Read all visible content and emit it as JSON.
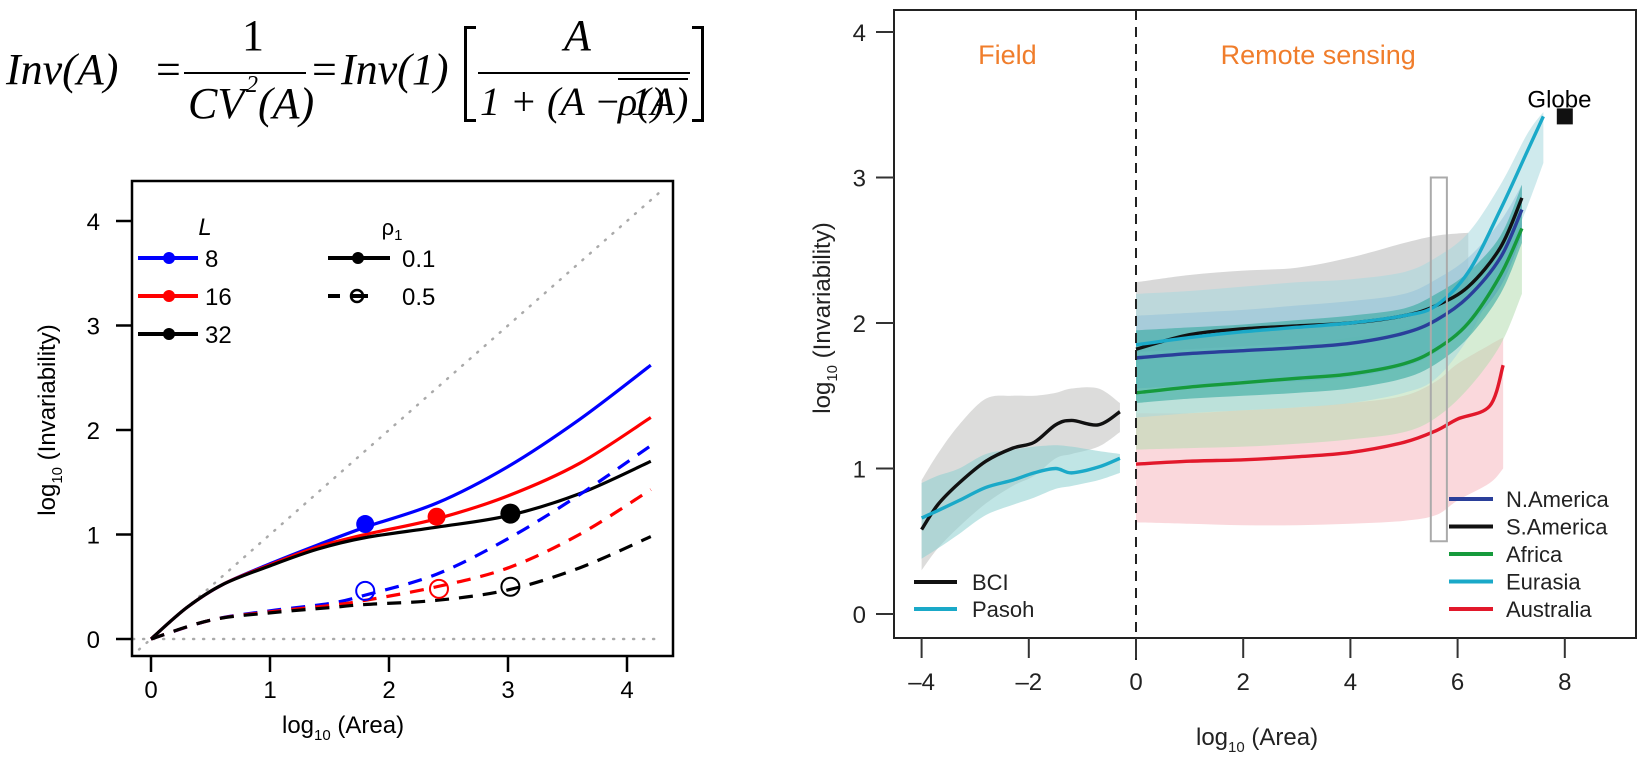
{
  "formula": {
    "lhs": "Inv(A)",
    "eq1": "=",
    "frac1_num": "1",
    "frac1_den": "CV",
    "frac1_den_sup": "2",
    "frac1_den_arg": "(A)",
    "eq2": "=",
    "inv1": "Inv(1)",
    "frac2_num": "A",
    "frac2_den_prefix": "1 + (A − 1)",
    "frac2_den_rho": "ρ(A)"
  },
  "chart_data": [
    {
      "type": "line",
      "title": "",
      "xlabel": "log10 (Area)",
      "ylabel": "log10 (Invariability)",
      "xlim": [
        -0.15,
        4.3
      ],
      "ylim": [
        -0.17,
        4.35
      ],
      "xticks": [
        0,
        1,
        2,
        3,
        4
      ],
      "yticks": [
        0,
        1,
        2,
        3,
        4
      ],
      "grid": false,
      "legend": {
        "placement": "top-left",
        "color_title": "L",
        "style_title": "ρ1",
        "color_entries": [
          {
            "label": "8",
            "color": "#0000ff"
          },
          {
            "label": "16",
            "color": "#ff0000"
          },
          {
            "label": "32",
            "color": "#000000"
          }
        ],
        "style_entries": [
          {
            "label": "0.1",
            "style": "solid",
            "marker": "filled-circle"
          },
          {
            "label": "0.5",
            "style": "dashed",
            "marker": "open-circle"
          }
        ]
      },
      "reference_lines": [
        {
          "name": "1:1 line",
          "style": "dotted",
          "color": "#aaaaaa",
          "x": [
            -0.1,
            4.3
          ],
          "y": [
            -0.1,
            4.3
          ]
        },
        {
          "name": "zero line",
          "style": "dotted",
          "color": "#aaaaaa",
          "x": [
            -0.15,
            4.3
          ],
          "y": [
            0,
            0
          ]
        }
      ],
      "series": [
        {
          "name": "L=8, rho1=0.1",
          "color": "#0000ff",
          "style": "solid",
          "x": [
            0,
            0.3,
            0.6,
            1.0,
            1.4,
            1.8,
            2.4,
            3.0,
            3.6,
            4.2
          ],
          "y": [
            0,
            0.3,
            0.52,
            0.72,
            0.9,
            1.07,
            1.3,
            1.65,
            2.1,
            2.62
          ],
          "marker": {
            "x": 1.8,
            "y": 1.1
          }
        },
        {
          "name": "L=16, rho1=0.1",
          "color": "#ff0000",
          "style": "solid",
          "x": [
            0,
            0.3,
            0.6,
            1.0,
            1.4,
            1.8,
            2.4,
            3.0,
            3.6,
            4.2
          ],
          "y": [
            0,
            0.3,
            0.52,
            0.71,
            0.88,
            1.0,
            1.15,
            1.37,
            1.68,
            2.12
          ],
          "marker": {
            "x": 2.4,
            "y": 1.17
          }
        },
        {
          "name": "L=32, rho1=0.1",
          "color": "#000000",
          "style": "solid",
          "x": [
            0,
            0.3,
            0.6,
            1.0,
            1.4,
            1.8,
            2.4,
            3.0,
            3.6,
            4.2
          ],
          "y": [
            0,
            0.3,
            0.52,
            0.7,
            0.86,
            0.97,
            1.07,
            1.18,
            1.39,
            1.7
          ],
          "marker": {
            "x": 3.02,
            "y": 1.2
          }
        },
        {
          "name": "L=8, rho1=0.5",
          "color": "#0000ff",
          "style": "dashed",
          "x": [
            0,
            0.5,
            1.0,
            1.5,
            1.8,
            2.4,
            3.0,
            3.6,
            4.2
          ],
          "y": [
            0,
            0.18,
            0.27,
            0.34,
            0.42,
            0.62,
            0.96,
            1.38,
            1.85
          ],
          "marker": {
            "x": 1.8,
            "y": 0.46
          }
        },
        {
          "name": "L=16, rho1=0.5",
          "color": "#ff0000",
          "style": "dashed",
          "x": [
            0,
            0.5,
            1.0,
            1.5,
            1.8,
            2.4,
            3.0,
            3.6,
            4.2
          ],
          "y": [
            0,
            0.18,
            0.26,
            0.32,
            0.37,
            0.5,
            0.68,
            1.0,
            1.43
          ],
          "marker": {
            "x": 2.42,
            "y": 0.48
          }
        },
        {
          "name": "L=32, rho1=0.5",
          "color": "#000000",
          "style": "dashed",
          "x": [
            0,
            0.5,
            1.0,
            1.5,
            1.8,
            2.4,
            3.0,
            3.6,
            4.2
          ],
          "y": [
            0,
            0.18,
            0.25,
            0.3,
            0.33,
            0.37,
            0.47,
            0.68,
            0.98
          ],
          "marker": {
            "x": 3.02,
            "y": 0.5
          }
        }
      ]
    },
    {
      "type": "line",
      "title": "",
      "xlabel": "log10 (Area)",
      "ylabel": "log10 (Invariability)",
      "xlim": [
        -4.5,
        9.3
      ],
      "ylim": [
        -0.17,
        4.15
      ],
      "xticks": [
        -4,
        -2,
        0,
        2,
        4,
        6,
        8
      ],
      "yticks": [
        0,
        1,
        2,
        3,
        4
      ],
      "grid": false,
      "annotations": [
        {
          "text": "Field",
          "color": "#f07d2b",
          "x": -2.4,
          "y": 3.85
        },
        {
          "text": "Remote sensing",
          "color": "#f07d2b",
          "x": 3.4,
          "y": 3.85
        },
        {
          "text": "Globe",
          "color": "#000000",
          "x": 7.9,
          "y": 3.55
        }
      ],
      "divider": {
        "x": 0,
        "style": "dashed"
      },
      "highlight_box": {
        "x": [
          5.5,
          5.8
        ],
        "y": [
          0.5,
          3.0
        ]
      },
      "globe_point": {
        "x": 8.0,
        "y": 3.42
      },
      "legends": [
        {
          "placement": "bottom-left",
          "entries": [
            {
              "label": "BCI",
              "color": "#111111"
            },
            {
              "label": "Pasoh",
              "color": "#1aa9c8"
            }
          ]
        },
        {
          "placement": "bottom-right",
          "entries": [
            {
              "label": "N.America",
              "color": "#2a3f9a"
            },
            {
              "label": "S.America",
              "color": "#111111"
            },
            {
              "label": "Africa",
              "color": "#169a3c"
            },
            {
              "label": "Eurasia",
              "color": "#1aa9c8"
            },
            {
              "label": "Australia",
              "color": "#e2182b"
            }
          ]
        }
      ],
      "series": [
        {
          "name": "BCI",
          "color": "#111111",
          "band_color": "#bfbfbd",
          "x": [
            -4.0,
            -3.7,
            -3.3,
            -2.8,
            -2.3,
            -1.9,
            -1.5,
            -1.2,
            -0.7,
            -0.3
          ],
          "y": [
            0.58,
            0.75,
            0.9,
            1.05,
            1.14,
            1.18,
            1.3,
            1.33,
            1.3,
            1.39
          ],
          "lower": [
            0.3,
            0.45,
            0.6,
            0.76,
            0.88,
            0.95,
            1.07,
            1.1,
            1.15,
            1.25
          ],
          "upper": [
            0.92,
            1.1,
            1.3,
            1.48,
            1.5,
            1.5,
            1.52,
            1.55,
            1.55,
            1.45
          ]
        },
        {
          "name": "Pasoh",
          "color": "#1aa9c8",
          "band_color": "#8ccfcf",
          "x": [
            -4.0,
            -3.7,
            -3.3,
            -2.8,
            -2.3,
            -1.9,
            -1.5,
            -1.2,
            -0.7,
            -0.3
          ],
          "y": [
            0.66,
            0.71,
            0.78,
            0.87,
            0.92,
            0.97,
            1.0,
            0.97,
            1.01,
            1.07
          ],
          "lower": [
            0.38,
            0.45,
            0.55,
            0.68,
            0.75,
            0.8,
            0.86,
            0.88,
            0.92,
            0.97
          ],
          "upper": [
            0.9,
            0.95,
            1.0,
            1.1,
            1.13,
            1.15,
            1.16,
            1.15,
            1.12,
            1.1
          ]
        },
        {
          "name": "Australia",
          "color": "#e2182b",
          "band_color": "#f5b8c0",
          "x": [
            0,
            1,
            2,
            3,
            4,
            5,
            5.6,
            6.0,
            6.6,
            6.85
          ],
          "y": [
            1.03,
            1.05,
            1.06,
            1.08,
            1.11,
            1.18,
            1.26,
            1.34,
            1.43,
            1.71
          ],
          "lower": [
            0.63,
            0.62,
            0.61,
            0.61,
            0.62,
            0.64,
            0.68,
            0.78,
            0.9,
            1.0
          ],
          "upper": [
            1.38,
            1.38,
            1.4,
            1.42,
            1.45,
            1.5,
            1.6,
            1.72,
            1.85,
            1.9
          ]
        },
        {
          "name": "Africa",
          "color": "#169a3c",
          "band_color": "#b5dcb0",
          "x": [
            0,
            1,
            2,
            3,
            4,
            5,
            5.6,
            6.2,
            6.8,
            7.2
          ],
          "y": [
            1.52,
            1.56,
            1.59,
            1.62,
            1.65,
            1.72,
            1.82,
            2.0,
            2.33,
            2.65
          ],
          "lower": [
            1.13,
            1.14,
            1.15,
            1.17,
            1.2,
            1.25,
            1.35,
            1.55,
            1.85,
            2.2
          ],
          "upper": [
            1.78,
            1.8,
            1.82,
            1.85,
            1.9,
            1.96,
            2.05,
            2.25,
            2.6,
            2.85
          ]
        },
        {
          "name": "N.America",
          "color": "#2a3f9a",
          "band_color": "#7fa8d6",
          "x": [
            0,
            1,
            2,
            3,
            4,
            5,
            5.6,
            6.2,
            6.8,
            7.2
          ],
          "y": [
            1.76,
            1.79,
            1.81,
            1.83,
            1.86,
            1.93,
            2.02,
            2.18,
            2.45,
            2.78
          ],
          "lower": [
            1.55,
            1.57,
            1.59,
            1.6,
            1.63,
            1.7,
            1.8,
            1.98,
            2.25,
            2.6
          ],
          "upper": [
            2.05,
            2.07,
            2.09,
            2.12,
            2.15,
            2.2,
            2.3,
            2.45,
            2.7,
            2.95
          ]
        },
        {
          "name": "S.America",
          "color": "#111111",
          "band_color": "#2aa59a",
          "x": [
            0,
            1,
            2,
            3,
            4,
            5,
            5.6,
            6.2,
            6.8,
            7.2
          ],
          "y": [
            1.82,
            1.92,
            1.96,
            1.98,
            2.0,
            2.05,
            2.12,
            2.25,
            2.52,
            2.86
          ],
          "lower": [
            1.45,
            1.48,
            1.5,
            1.52,
            1.55,
            1.62,
            1.72,
            1.9,
            2.2,
            2.55
          ],
          "upper": [
            1.95,
            1.97,
            1.99,
            2.02,
            2.05,
            2.1,
            2.2,
            2.35,
            2.6,
            2.95
          ]
        },
        {
          "name": "Eurasia",
          "color": "#1aa9c8",
          "band_color": "#a7d9df",
          "x": [
            0,
            1,
            2,
            3,
            4,
            5,
            5.6,
            6.2,
            6.8,
            7.3,
            7.6
          ],
          "y": [
            1.85,
            1.9,
            1.94,
            1.97,
            2.0,
            2.05,
            2.12,
            2.35,
            2.78,
            3.18,
            3.42
          ],
          "lower": [
            1.35,
            1.38,
            1.4,
            1.42,
            1.45,
            1.52,
            1.62,
            1.9,
            2.35,
            2.8,
            3.1
          ],
          "upper": [
            2.2,
            2.22,
            2.25,
            2.28,
            2.3,
            2.35,
            2.45,
            2.62,
            2.95,
            3.3,
            3.45
          ]
        },
        {
          "name": "Global envelope",
          "color": "none",
          "band_color": "#d4d4d4",
          "x": [
            0,
            1,
            2,
            3,
            4,
            5,
            5.6,
            6.2
          ],
          "lower": [
            1.8,
            1.82,
            1.84,
            1.86,
            1.88,
            1.92,
            2.0,
            2.15
          ],
          "upper": [
            2.28,
            2.33,
            2.36,
            2.38,
            2.45,
            2.55,
            2.6,
            2.62
          ]
        }
      ]
    }
  ]
}
